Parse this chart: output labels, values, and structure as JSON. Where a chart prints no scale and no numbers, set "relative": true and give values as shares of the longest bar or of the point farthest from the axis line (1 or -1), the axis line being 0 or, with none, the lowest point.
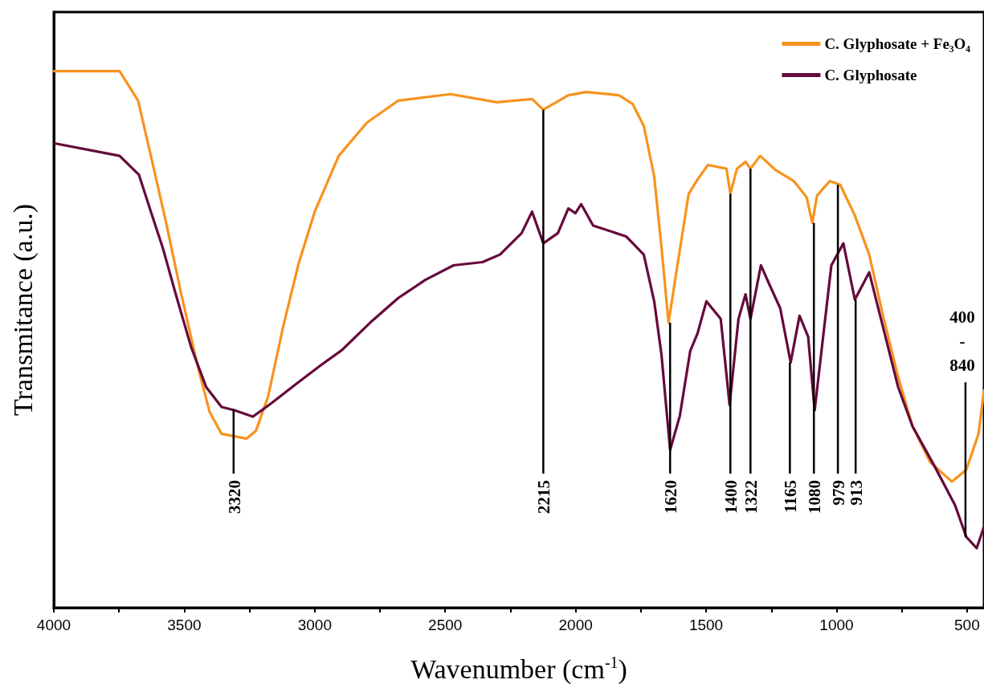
{
  "chart_data": {
    "type": "line",
    "relative": true,
    "xlabel": "Wavenumber (cm$^{-1}$)",
    "ylabel": "Transmitance (a.u.)",
    "xlim": [
      4000,
      435
    ],
    "xticks": [
      4000,
      {
        "value": 3750,
        "label": null
      },
      3500,
      {
        "value": 3250,
        "label": null
      },
      3000,
      {
        "value": 2750,
        "label": null
      },
      2500,
      {
        "value": 2250,
        "label": null
      },
      2000,
      {
        "value": 1750,
        "label": null
      },
      1500,
      {
        "value": 1250,
        "label": null
      },
      1000,
      {
        "value": 750,
        "label": null
      },
      500
    ],
    "legend": "top right",
    "marker": "none",
    "line_style": "solid",
    "series": [
      {
        "name": "C. Glyphosate + Fe₃O₄",
        "color": "#f7931e",
        "x": [
          4000,
          3748,
          3677,
          3628,
          3569,
          3511,
          3449,
          3403,
          3357,
          3262,
          3225,
          3179,
          3120,
          3062,
          3000,
          2908,
          2800,
          2680,
          2480,
          2302,
          2167,
          2124,
          2028,
          1961,
          1834,
          1782,
          1739,
          1699,
          1671,
          1644,
          1610,
          1567,
          1533,
          1493,
          1422,
          1407,
          1382,
          1349,
          1330,
          1293,
          1232,
          1164,
          1115,
          1093,
          1075,
          1026,
          986,
          930,
          875,
          819,
          764,
          709,
          641,
          558,
          503,
          456,
          435
        ],
        "values": [
          1,
          1,
          0.945,
          0.842,
          0.716,
          0.583,
          0.451,
          0.365,
          0.324,
          0.315,
          0.33,
          0.393,
          0.526,
          0.641,
          0.738,
          0.842,
          0.904,
          0.945,
          0.957,
          0.942,
          0.948,
          0.928,
          0.955,
          0.961,
          0.955,
          0.939,
          0.898,
          0.804,
          0.671,
          0.531,
          0.638,
          0.771,
          0.798,
          0.825,
          0.818,
          0.771,
          0.818,
          0.831,
          0.818,
          0.842,
          0.815,
          0.795,
          0.765,
          0.717,
          0.768,
          0.795,
          0.788,
          0.731,
          0.658,
          0.538,
          0.43,
          0.338,
          0.271,
          0.235,
          0.257,
          0.324,
          0.405
        ]
      },
      {
        "name": "C. Glyphosate",
        "color": "#650a3c",
        "x": [
          3994,
          3748,
          3674,
          3628,
          3582,
          3532,
          3474,
          3416,
          3357,
          3308,
          3237,
          3166,
          3071,
          2979,
          2896,
          2788,
          2680,
          2576,
          2468,
          2357,
          2290,
          2207,
          2167,
          2124,
          2068,
          2028,
          2001,
          1979,
          1933,
          1807,
          1739,
          1699,
          1671,
          1638,
          1601,
          1561,
          1533,
          1499,
          1444,
          1410,
          1376,
          1349,
          1330,
          1290,
          1259,
          1216,
          1176,
          1142,
          1109,
          1084,
          1020,
          974,
          930,
          875,
          819,
          764,
          709,
          626,
          546,
          503,
          463,
          435
        ],
        "values": [
          0.865,
          0.842,
          0.807,
          0.738,
          0.67,
          0.583,
          0.486,
          0.411,
          0.374,
          0.368,
          0.356,
          0.381,
          0.417,
          0.451,
          0.48,
          0.531,
          0.577,
          0.611,
          0.638,
          0.644,
          0.658,
          0.698,
          0.738,
          0.679,
          0.698,
          0.744,
          0.735,
          0.752,
          0.712,
          0.692,
          0.658,
          0.571,
          0.471,
          0.294,
          0.357,
          0.478,
          0.511,
          0.571,
          0.538,
          0.378,
          0.538,
          0.584,
          0.538,
          0.638,
          0.604,
          0.558,
          0.457,
          0.544,
          0.505,
          0.368,
          0.638,
          0.679,
          0.574,
          0.625,
          0.517,
          0.411,
          0.338,
          0.265,
          0.191,
          0.132,
          0.111,
          0.151
        ]
      }
    ],
    "annotations": [
      {
        "text": "3320",
        "x": 3311,
        "y": 0.37
      },
      {
        "text": "2215",
        "x": 2124,
        "y": 0.928
      },
      {
        "text": "1620",
        "x": 1638,
        "y": 0.531
      },
      {
        "text": "1400",
        "x": 1407,
        "y": 0.771
      },
      {
        "text": "1322",
        "x": 1330,
        "y": 0.818
      },
      {
        "text": "1165",
        "x": 1179,
        "y": 0.457
      },
      {
        "text": "1080",
        "x": 1087,
        "y": 0.717
      },
      {
        "text": "979",
        "x": 995,
        "y": 0.788
      },
      {
        "text": "913",
        "x": 927,
        "y": 0.574
      },
      {
        "text": "400\n-\n840",
        "x": 506,
        "y": 0.132
      }
    ]
  }
}
